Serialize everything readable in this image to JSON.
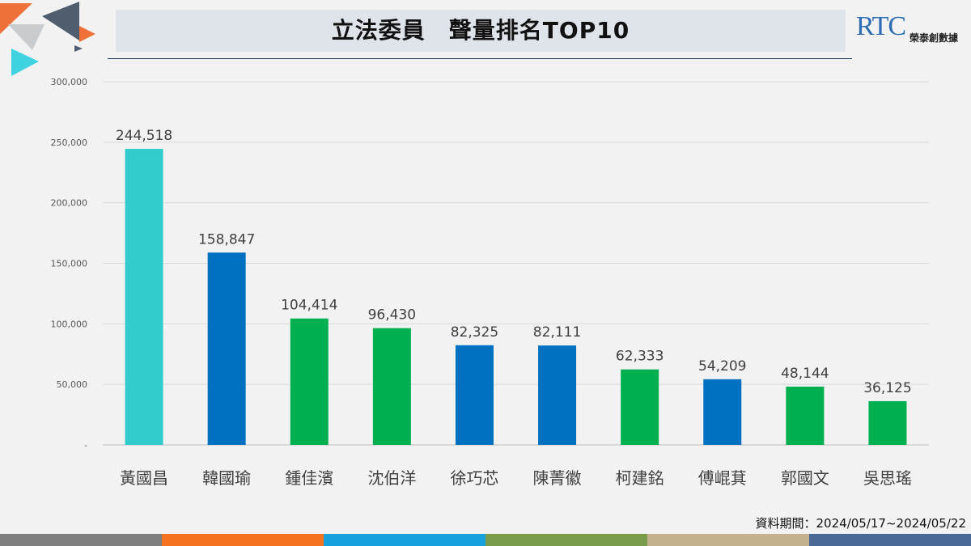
{
  "header": {
    "title": "立法委員　聲量排名TOP10",
    "logo_text": "RTC",
    "logo_subtext": "榮泰創數據"
  },
  "footer": {
    "period": "資料期間：2024/05/17~2024/05/22"
  },
  "colors": {
    "teal": "#33cccc",
    "blue": "#0070c0",
    "green": "#00b050",
    "bottom_bar": [
      "#7f7f7f",
      "#f47320",
      "#17a1dc",
      "#779b48",
      "#c4b08f",
      "#4a6996"
    ]
  },
  "chart_data": {
    "type": "bar",
    "title": "立法委員　聲量排名TOP10",
    "categories": [
      "黃國昌",
      "韓國瑜",
      "鍾佳濱",
      "沈伯洋",
      "徐巧芯",
      "陳菁徽",
      "柯建銘",
      "傅崐萁",
      "郭國文",
      "吳思瑤"
    ],
    "values": [
      244518,
      158847,
      104414,
      96430,
      82325,
      82111,
      62333,
      54209,
      48144,
      36125
    ],
    "value_labels": [
      "244,518",
      "158,847",
      "104,414",
      "96,430",
      "82,325",
      "82,111",
      "62,333",
      "54,209",
      "48,144",
      "36,125"
    ],
    "bar_colors": [
      "#33cccc",
      "#0070c0",
      "#00b050",
      "#00b050",
      "#0070c0",
      "#0070c0",
      "#00b050",
      "#0070c0",
      "#00b050",
      "#00b050"
    ],
    "ylim": [
      0,
      300000
    ],
    "yticks": [
      0,
      50000,
      100000,
      150000,
      200000,
      250000,
      300000
    ],
    "ytick_labels": [
      "-",
      "50,000",
      "100,000",
      "150,000",
      "200,000",
      "250,000",
      "300,000"
    ],
    "grid": true,
    "xlabel": "",
    "ylabel": ""
  }
}
